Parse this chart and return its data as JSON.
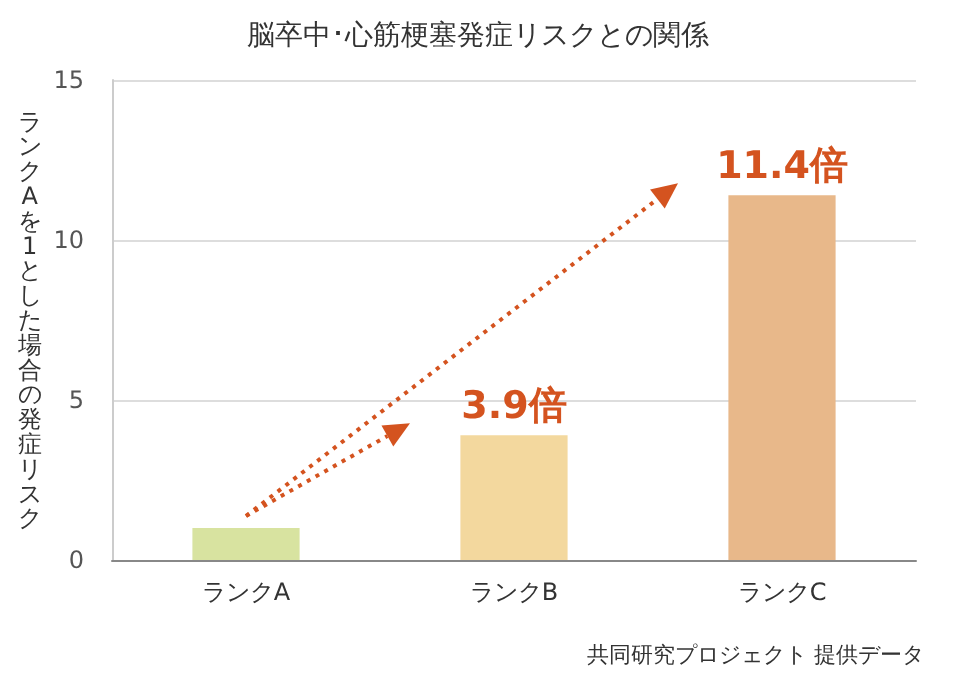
{
  "chart_data": {
    "type": "bar",
    "title": "脳卒中･心筋梗塞発症リスクとの関係",
    "ylabel": "ランクAを1とした場合の発症リスク",
    "categories": [
      "ランクA",
      "ランクB",
      "ランクC"
    ],
    "values": [
      1,
      3.9,
      11.4
    ],
    "colors": [
      "#d8e3a0",
      "#f3d89e",
      "#e8b88a"
    ],
    "value_labels": [
      null,
      "3.9倍",
      "11.4倍"
    ],
    "ylim": [
      0,
      15
    ],
    "yticks": [
      0,
      5,
      10,
      15
    ],
    "grid": "y",
    "annotations": [
      "共同研究プロジェクト 提供データ"
    ]
  }
}
